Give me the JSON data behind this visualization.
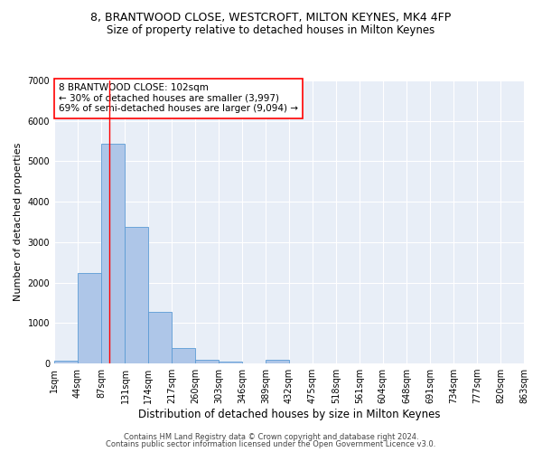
{
  "title_line1": "8, BRANTWOOD CLOSE, WESTCROFT, MILTON KEYNES, MK4 4FP",
  "title_line2": "Size of property relative to detached houses in Milton Keynes",
  "xlabel": "Distribution of detached houses by size in Milton Keynes",
  "ylabel": "Number of detached properties",
  "footer_line1": "Contains HM Land Registry data © Crown copyright and database right 2024.",
  "footer_line2": "Contains public sector information licensed under the Open Government Licence v3.0.",
  "annotation_line1": "8 BRANTWOOD CLOSE: 102sqm",
  "annotation_line2": "← 30% of detached houses are smaller (3,997)",
  "annotation_line3": "69% of semi-detached houses are larger (9,094) →",
  "bin_edges": [
    1,
    44,
    87,
    131,
    174,
    217,
    260,
    303,
    346,
    389,
    432,
    475,
    518,
    561,
    604,
    648,
    691,
    734,
    777,
    820,
    863
  ],
  "bar_heights": [
    80,
    2230,
    5430,
    3380,
    1280,
    390,
    100,
    55,
    5,
    95,
    5,
    0,
    0,
    0,
    0,
    0,
    0,
    0,
    0,
    0
  ],
  "bar_color": "#aec6e8",
  "bar_edge_color": "#5b9bd5",
  "background_color": "#e8eef7",
  "grid_color": "#ffffff",
  "red_line_x": 102,
  "ylim": [
    0,
    7000
  ],
  "yticks": [
    0,
    1000,
    2000,
    3000,
    4000,
    5000,
    6000,
    7000
  ],
  "tick_labels": [
    "1sqm",
    "44sqm",
    "87sqm",
    "131sqm",
    "174sqm",
    "217sqm",
    "260sqm",
    "303sqm",
    "346sqm",
    "389sqm",
    "432sqm",
    "475sqm",
    "518sqm",
    "561sqm",
    "604sqm",
    "648sqm",
    "691sqm",
    "734sqm",
    "777sqm",
    "820sqm",
    "863sqm"
  ],
  "title1_fontsize": 9,
  "title2_fontsize": 8.5,
  "ylabel_fontsize": 8,
  "xlabel_fontsize": 8.5,
  "tick_fontsize": 7,
  "footer_fontsize": 6,
  "annotation_fontsize": 7.5
}
